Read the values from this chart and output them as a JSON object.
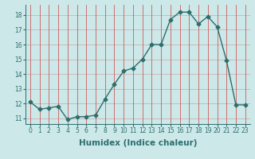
{
  "x": [
    0,
    1,
    2,
    3,
    4,
    5,
    6,
    7,
    8,
    9,
    10,
    11,
    12,
    13,
    14,
    15,
    16,
    17,
    18,
    19,
    20,
    21,
    22,
    23
  ],
  "y": [
    12.1,
    11.6,
    11.7,
    11.8,
    10.9,
    11.1,
    11.1,
    11.2,
    12.3,
    13.3,
    14.2,
    14.4,
    15.0,
    16.0,
    16.0,
    17.7,
    18.2,
    18.2,
    17.4,
    17.9,
    17.2,
    14.9,
    11.9,
    11.9
  ],
  "line_color": "#2d6e6e",
  "marker": "D",
  "marker_size": 2.5,
  "line_width": 1.0,
  "bg_color": "#cce8e8",
  "grid_color_h": "#c8a8a8",
  "grid_color_v": "#d04040",
  "xlabel": "Humidex (Indice chaleur)",
  "ylim": [
    10.6,
    18.7
  ],
  "xlim": [
    -0.5,
    23.5
  ],
  "yticks": [
    11,
    12,
    13,
    14,
    15,
    16,
    17,
    18
  ],
  "xticks": [
    0,
    1,
    2,
    3,
    4,
    5,
    6,
    7,
    8,
    9,
    10,
    11,
    12,
    13,
    14,
    15,
    16,
    17,
    18,
    19,
    20,
    21,
    22,
    23
  ],
  "tick_label_fontsize": 5.5,
  "xlabel_fontsize": 7.5
}
